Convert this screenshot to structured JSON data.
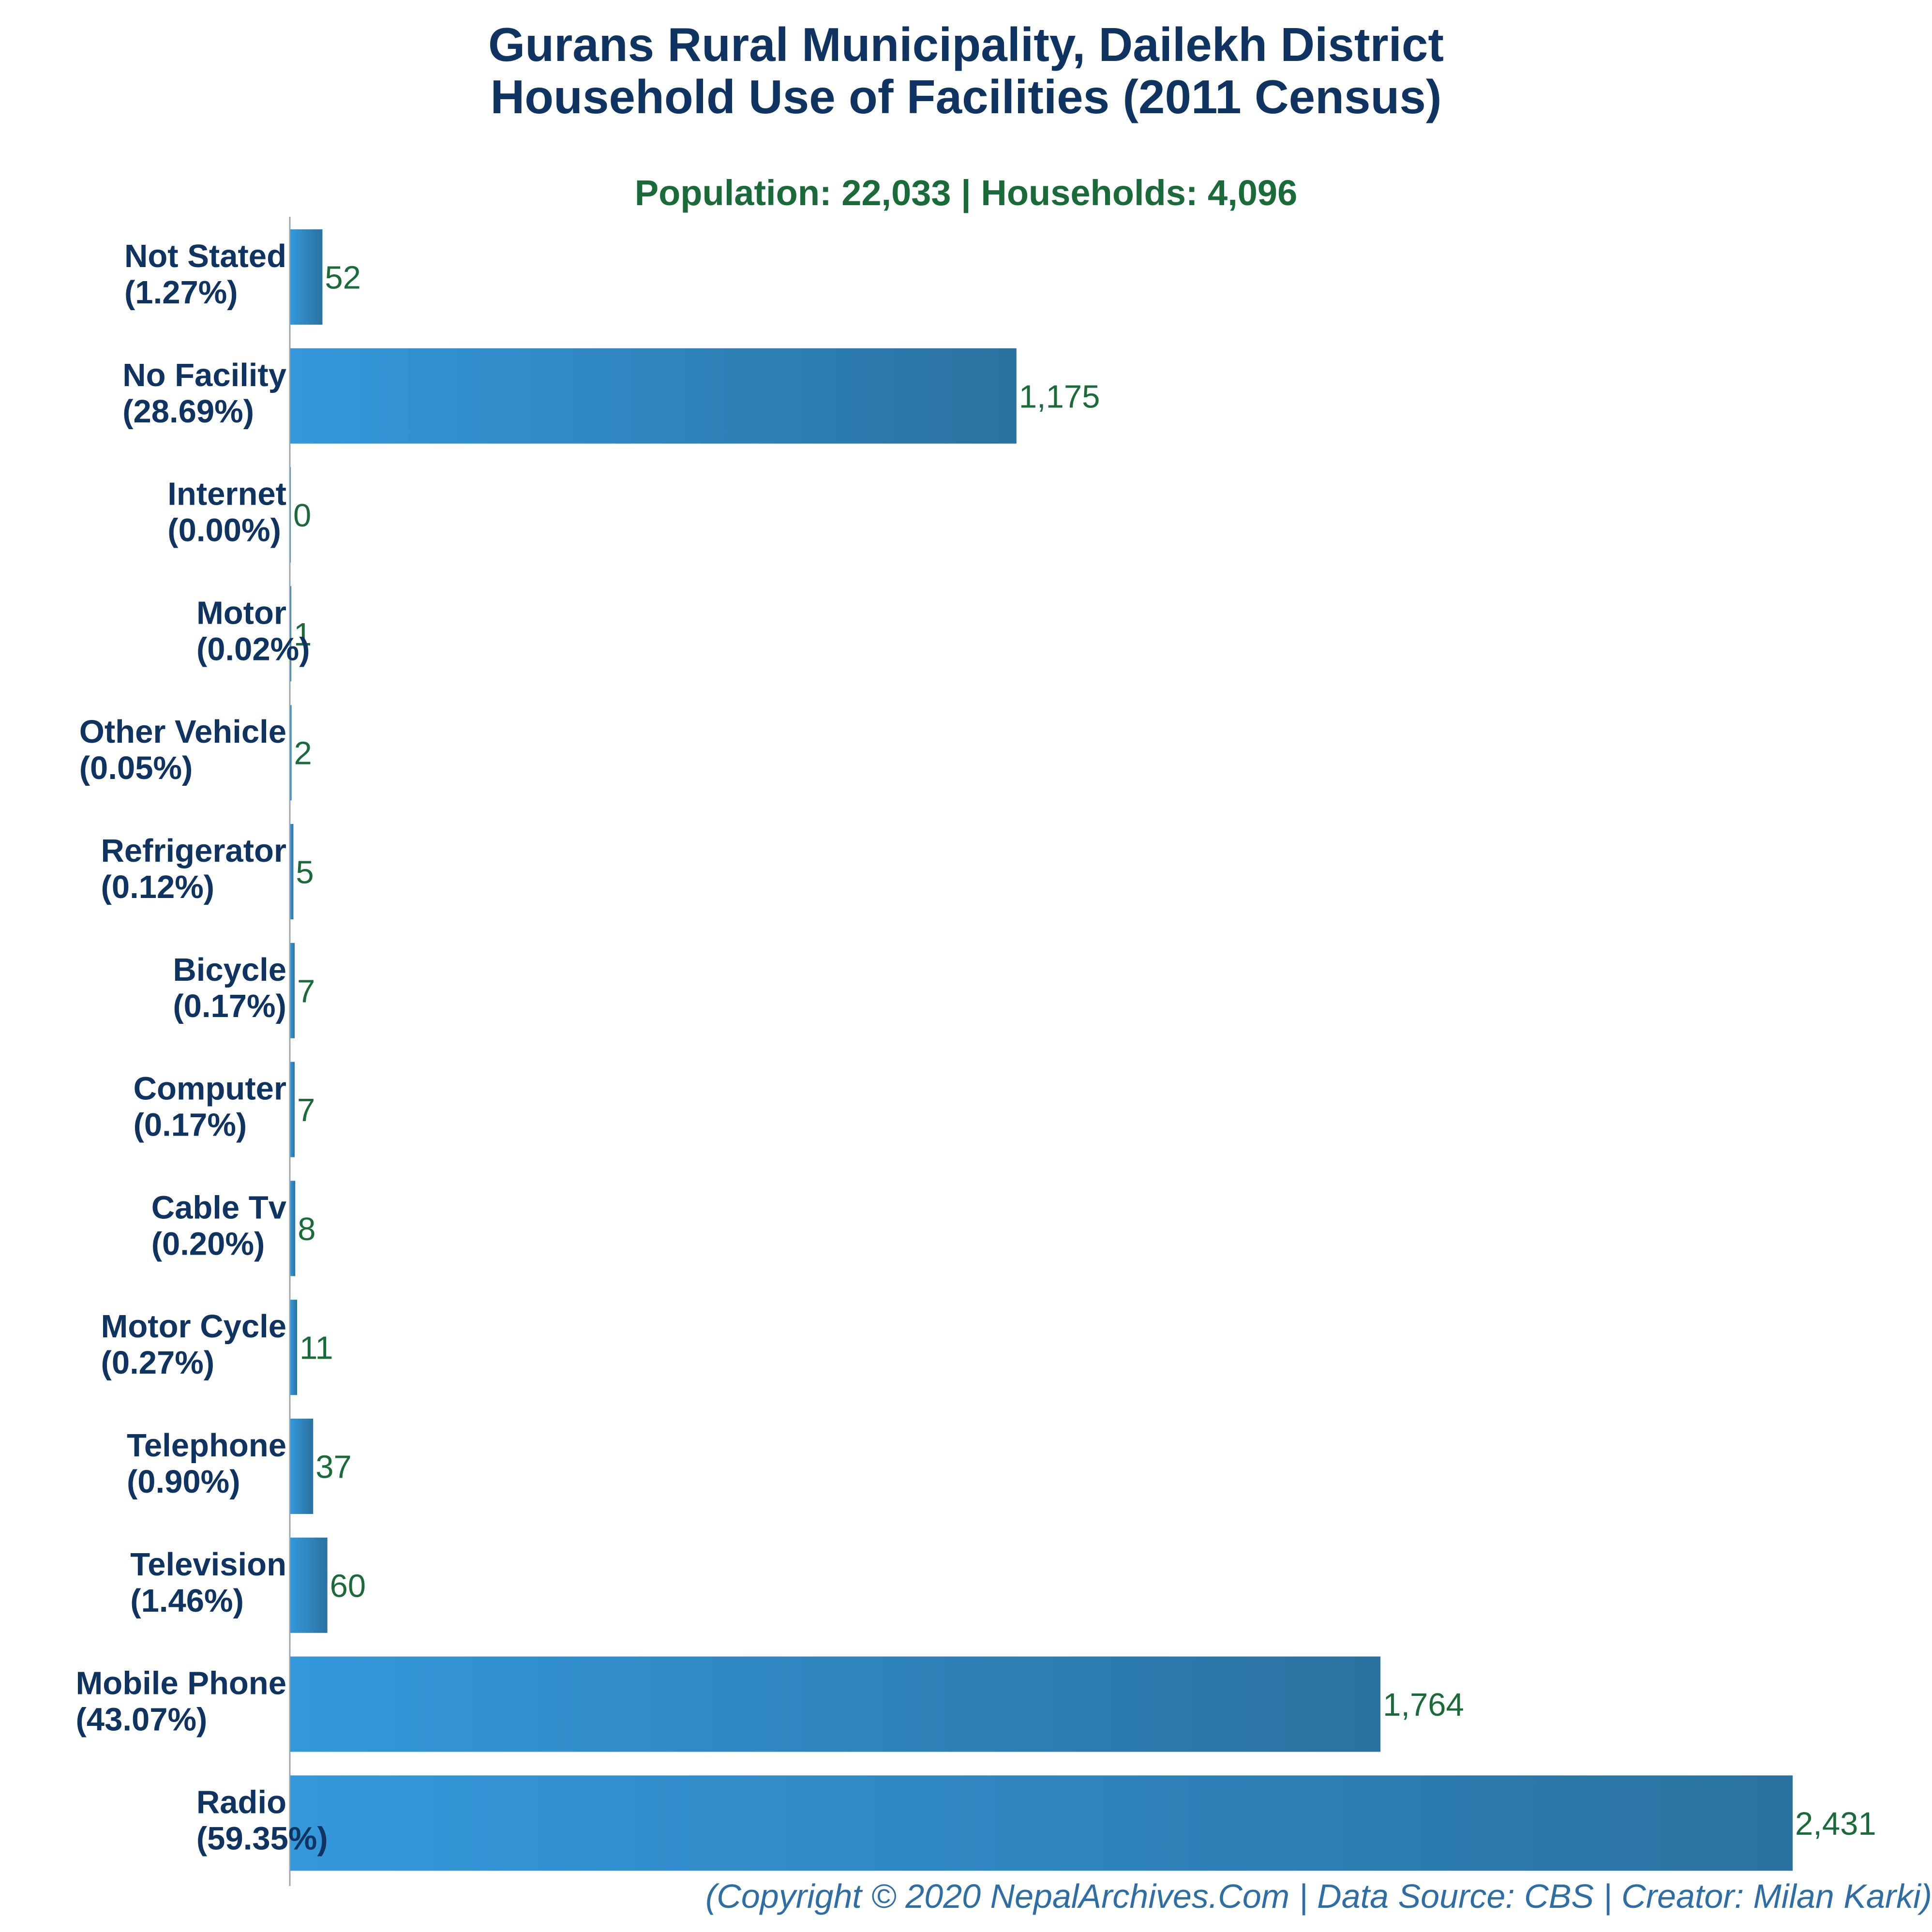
{
  "header": {
    "title_line1": "Gurans Rural Municipality, Dailekh District",
    "title_line2": "Household Use of Facilities (2011 Census)",
    "subtitle": "Population: 22,033 | Households: 4,096"
  },
  "footer": {
    "credit": "(Copyright © 2020 NepalArchives.Com | Data Source: CBS | Creator: Milan Karki)"
  },
  "colors": {
    "bar_start": "#3498db",
    "bar_end": "#2a72a0",
    "title": "#0f3461",
    "value_label": "#1b6b3a",
    "footer": "#2f6ea5",
    "axis": "#9aa7b4"
  },
  "chart_data": {
    "type": "bar",
    "orientation": "horizontal",
    "categories": [
      "Not Stated",
      "No Facility",
      "Internet",
      "Motor",
      "Other Vehicle",
      "Refrigerator",
      "Bicycle",
      "Computer",
      "Cable Tv",
      "Motor Cycle",
      "Telephone",
      "Television",
      "Mobile Phone",
      "Radio"
    ],
    "percent_labels": [
      "(1.27%)",
      "(28.69%)",
      "(0.00%)",
      "(0.02%)",
      "(0.05%)",
      "(0.12%)",
      "(0.17%)",
      "(0.17%)",
      "(0.20%)",
      "(0.27%)",
      "(0.90%)",
      "(1.46%)",
      "(43.07%)",
      "(59.35%)"
    ],
    "values": [
      52,
      1175,
      0,
      1,
      2,
      5,
      7,
      7,
      8,
      11,
      37,
      60,
      1764,
      2431
    ],
    "value_labels": [
      "52",
      "1,175",
      "0",
      "1",
      "2",
      "5",
      "7",
      "7",
      "8",
      "11",
      "37",
      "60",
      "1,764",
      "2,431"
    ],
    "xlim": [
      0,
      2431
    ],
    "grid": false,
    "legend": "none"
  }
}
